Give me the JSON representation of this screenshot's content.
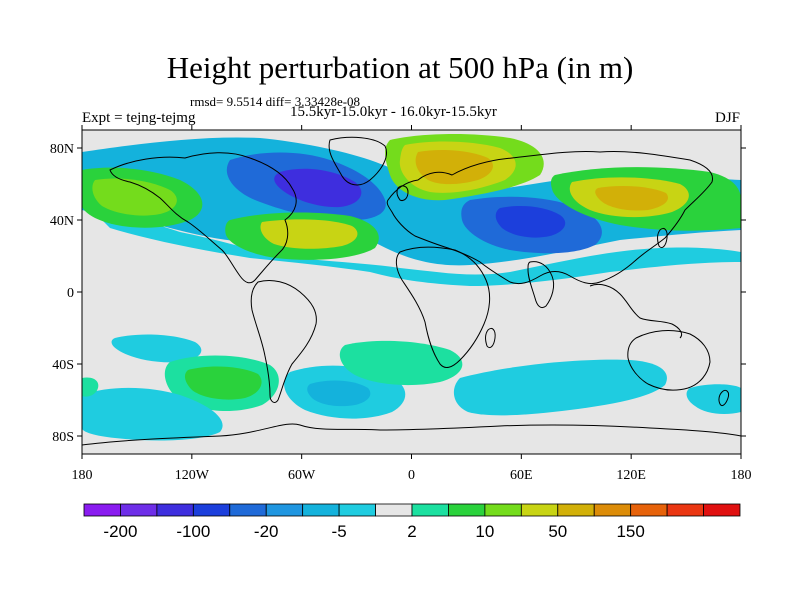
{
  "header": {
    "title": "Height perturbation at 500 hPa (in m)",
    "stats": "rmsd= 9.5514 diff= 3.33428e-08",
    "experiment": "Expt = tejng-tejmg",
    "period": "15.5kyr-15.0kyr - 16.0kyr-15.5kyr",
    "season": "DJF"
  },
  "axes": {
    "lat_ticks": [
      "80N",
      "40N",
      "0",
      "40S",
      "80S"
    ],
    "lat_values": [
      80,
      40,
      0,
      -40,
      -80
    ],
    "lon_ticks": [
      "180",
      "120W",
      "60W",
      "0",
      "60E",
      "120E",
      "180"
    ],
    "lon_values": [
      -180,
      -120,
      -60,
      0,
      60,
      120,
      180
    ],
    "lon_range": [
      -180,
      180
    ],
    "lat_range": [
      -90,
      90
    ]
  },
  "colorbar": {
    "labels": [
      "-200",
      "-100",
      "-20",
      "-5",
      "2",
      "10",
      "50",
      "150"
    ],
    "colors": [
      "#8a1cf0",
      "#6e2ee8",
      "#3e2ede",
      "#1c3fdc",
      "#1f6ad8",
      "#1f96e0",
      "#14b2dc",
      "#1fcce0",
      "#e6e6e6",
      "#1ce0a0",
      "#2ad23c",
      "#74dc1c",
      "#c8d414",
      "#d2b008",
      "#dc8c08",
      "#e6620a",
      "#ea3612",
      "#e01010"
    ]
  },
  "colors": {
    "neutral": "#e6e6e6",
    "coast": "#000000"
  }
}
